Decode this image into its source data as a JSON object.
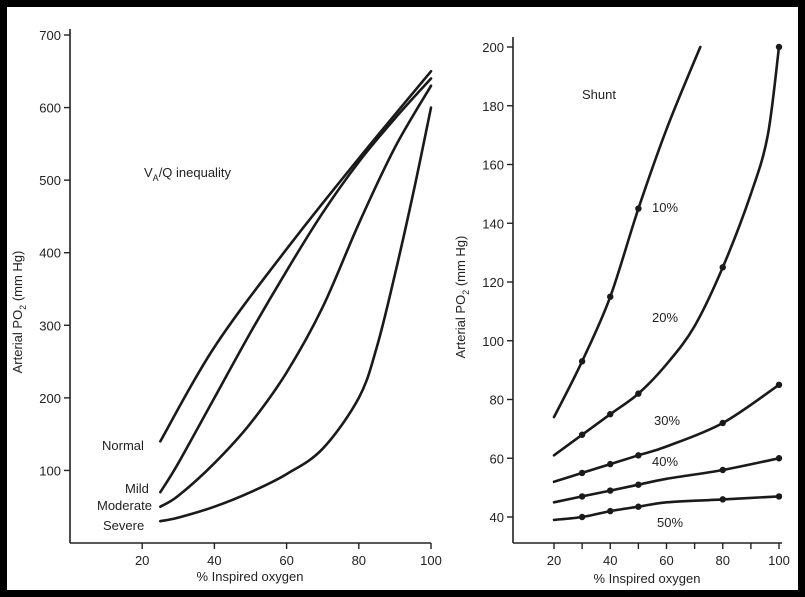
{
  "chart_data": [
    {
      "type": "line",
      "annotation_title": "VA/Q inequality",
      "annotation_base": "V",
      "annotation_sub": "A",
      "annotation_rest": "/Q inequality",
      "xlabel": "% Inspired oxygen",
      "ylabel_main": "Arterial PO",
      "ylabel_sub": "2",
      "ylabel_unit": " (mm Hg)",
      "xlim": [
        0,
        100
      ],
      "ylim": [
        0,
        700
      ],
      "xticks": [
        20,
        40,
        60,
        80,
        100
      ],
      "yticks": [
        100,
        200,
        300,
        400,
        500,
        600,
        700
      ],
      "grid": false,
      "series": [
        {
          "name": "Normal",
          "x": [
            25,
            40,
            60,
            80,
            100
          ],
          "y": [
            140,
            270,
            405,
            530,
            650
          ]
        },
        {
          "name": "Mild",
          "x": [
            25,
            30,
            40,
            50,
            60,
            70,
            80,
            90,
            100
          ],
          "y": [
            70,
            110,
            200,
            290,
            375,
            455,
            525,
            585,
            640
          ]
        },
        {
          "name": "Moderate",
          "x": [
            25,
            30,
            40,
            50,
            60,
            70,
            80,
            90,
            100
          ],
          "y": [
            50,
            65,
            110,
            165,
            235,
            325,
            440,
            545,
            630
          ]
        },
        {
          "name": "Severe",
          "x": [
            25,
            30,
            40,
            50,
            60,
            70,
            80,
            85,
            90,
            95,
            100
          ],
          "y": [
            30,
            35,
            50,
            70,
            95,
            130,
            200,
            270,
            370,
            480,
            600
          ]
        }
      ]
    },
    {
      "type": "line",
      "annotation_title": "Shunt",
      "xlabel": "% Inspired oxygen",
      "ylabel_main": "Arterial PO",
      "ylabel_sub": "2",
      "ylabel_unit": " (mm Hg)",
      "xlim": [
        10,
        100
      ],
      "ylim": [
        30,
        200
      ],
      "xticks": [
        20,
        30,
        40,
        50,
        60,
        70,
        80,
        90,
        100
      ],
      "xticklabels": [
        "20",
        "",
        "40",
        "",
        "60",
        "",
        "80",
        "",
        "100"
      ],
      "yticks": [
        40,
        60,
        80,
        100,
        120,
        140,
        160,
        180,
        200
      ],
      "grid": false,
      "series": [
        {
          "name": "10%",
          "x": [
            20,
            30,
            40,
            50,
            60,
            72
          ],
          "y": [
            74,
            93,
            115,
            145,
            172,
            200
          ],
          "markers": [
            [
              30,
              93
            ],
            [
              40,
              115
            ],
            [
              50,
              145
            ]
          ]
        },
        {
          "name": "20%",
          "x": [
            20,
            30,
            40,
            50,
            60,
            70,
            80,
            90,
            96,
            100
          ],
          "y": [
            61,
            68,
            75,
            82,
            92,
            105,
            125,
            150,
            170,
            200
          ],
          "markers": [
            [
              30,
              68
            ],
            [
              40,
              75
            ],
            [
              50,
              82
            ],
            [
              80,
              125
            ],
            [
              100,
              200
            ]
          ]
        },
        {
          "name": "30%",
          "x": [
            20,
            30,
            40,
            50,
            60,
            80,
            100
          ],
          "y": [
            52,
            55,
            58,
            61,
            64,
            72,
            85
          ],
          "markers": [
            [
              30,
              55
            ],
            [
              40,
              58
            ],
            [
              50,
              61
            ],
            [
              80,
              72
            ],
            [
              100,
              85
            ]
          ]
        },
        {
          "name": "40%",
          "x": [
            20,
            30,
            40,
            50,
            60,
            80,
            100
          ],
          "y": [
            45,
            47,
            49,
            51,
            53,
            56,
            60
          ],
          "markers": [
            [
              30,
              47
            ],
            [
              40,
              49
            ],
            [
              50,
              51
            ],
            [
              80,
              56
            ],
            [
              100,
              60
            ]
          ]
        },
        {
          "name": "50%",
          "x": [
            20,
            30,
            40,
            50,
            60,
            80,
            100
          ],
          "y": [
            39,
            40,
            42,
            43.5,
            45,
            46,
            47
          ],
          "markers": [
            [
              30,
              40
            ],
            [
              40,
              42
            ],
            [
              50,
              43.5
            ],
            [
              80,
              46
            ],
            [
              100,
              47
            ]
          ]
        }
      ]
    }
  ]
}
